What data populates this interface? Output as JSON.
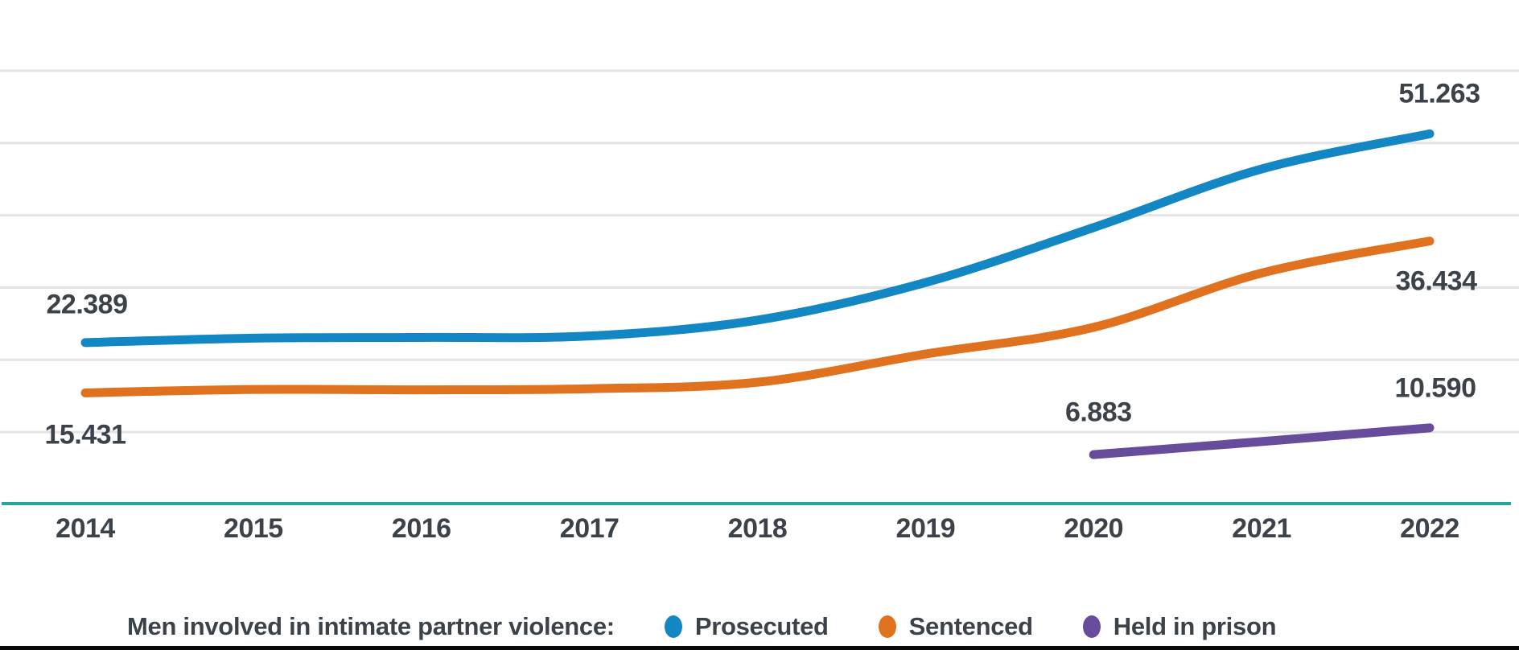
{
  "chart_data": {
    "type": "line",
    "title": "Men involved in intimate partner violence",
    "categories": [
      "2014",
      "2015",
      "2016",
      "2017",
      "2018",
      "2019",
      "2020",
      "2021",
      "2022"
    ],
    "series": [
      {
        "name": "Prosecuted",
        "color": "#1287c3",
        "values": [
          22389,
          23000,
          23100,
          23300,
          25500,
          30700,
          38300,
          46400,
          51263
        ],
        "first_label": "22.389",
        "last_label": "51.263"
      },
      {
        "name": "Sentenced",
        "color": "#e0711f",
        "values": [
          15431,
          15900,
          15850,
          16000,
          16900,
          20800,
          24500,
          32000,
          36434
        ],
        "first_label": "15.431",
        "last_label": "36.434"
      },
      {
        "name": "Held in prison",
        "color": "#674c9c",
        "values": [
          null,
          null,
          null,
          null,
          null,
          null,
          6883,
          8700,
          10590
        ],
        "first_label": "6.883",
        "last_label": "10.590"
      }
    ],
    "ylim": [
      0,
      65000
    ],
    "gridline_values": [
      10000,
      20000,
      30000,
      40000,
      50000,
      60000
    ],
    "grid": true,
    "legend_position": "bottom",
    "xlabel": "",
    "ylabel": ""
  },
  "legend": {
    "prefix": "Men involved in intimate partner violence:"
  },
  "colors": {
    "grid": "#e4e4e4",
    "axis": "#2aa399",
    "text": "#3b424a",
    "bottom_rule": "#0a0a0a"
  }
}
